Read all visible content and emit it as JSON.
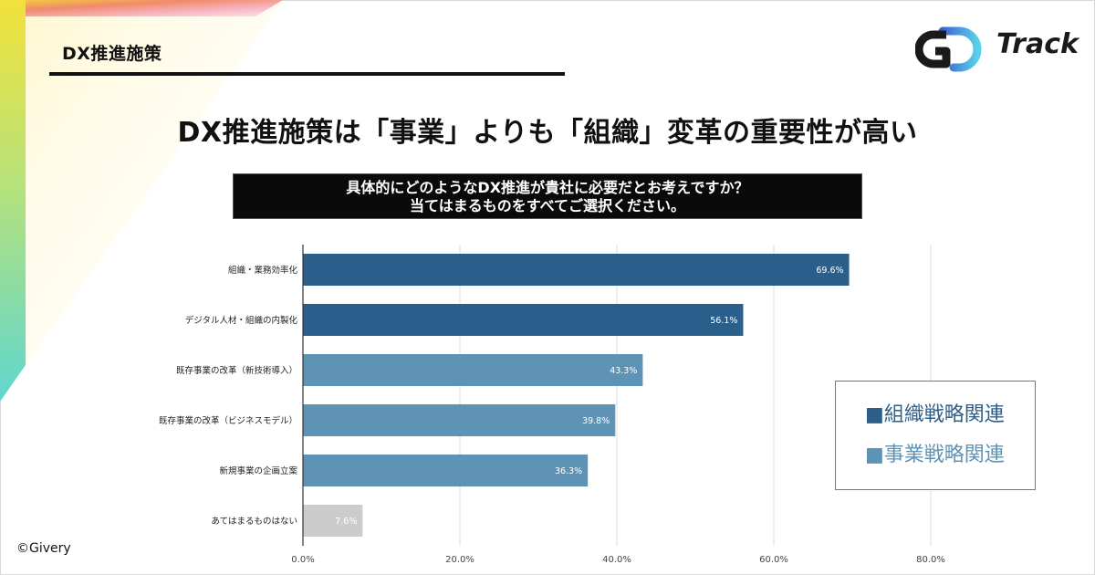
{
  "section_tag": "DX推進施策",
  "logo_text": "Track",
  "headline": "DX推進施策は「事業」よりも「組織」変革の重要性が高い",
  "question": {
    "line1": "具体的にどのようなDX推進が貴社に必要だとお考えですか？",
    "line2": "当てはまるものをすべてご選択ください。"
  },
  "legend": {
    "org_label": "■組織戦略関連",
    "biz_label": "■事業戦略関連"
  },
  "copyright": "©Givery",
  "colors": {
    "org": "#2b5f8b",
    "biz": "#5f93b5",
    "none": "#cccccc"
  },
  "chart_data": {
    "type": "bar",
    "orientation": "horizontal",
    "categories": [
      "組織・業務効率化",
      "デジタル人材・組織の内製化",
      "既存事業の改革（新技術導入）",
      "既存事業の改革（ビジネスモデル）",
      "新規事業の企画立案",
      "あてはまるものはない"
    ],
    "values": [
      69.6,
      56.1,
      43.3,
      39.8,
      36.3,
      7.6
    ],
    "value_labels": [
      "69.6%",
      "56.1%",
      "43.3%",
      "39.8%",
      "36.3%",
      "7.6%"
    ],
    "groups": [
      "org",
      "org",
      "biz",
      "biz",
      "biz",
      "none"
    ],
    "xlim": [
      0,
      80
    ],
    "xticks": [
      0,
      20,
      40,
      60,
      80
    ],
    "xtick_labels": [
      "0.0%",
      "20.0%",
      "40.0%",
      "60.0%",
      "80.0%"
    ],
    "grid": true,
    "legend_position": "right"
  }
}
